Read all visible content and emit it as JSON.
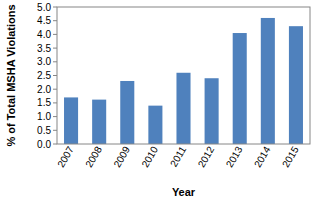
{
  "chart_data": {
    "type": "bar",
    "categories": [
      "2007",
      "2008",
      "2009",
      "2010",
      "2011",
      "2012",
      "2013",
      "2014",
      "2015"
    ],
    "values": [
      1.7,
      1.62,
      2.3,
      1.4,
      2.6,
      2.4,
      4.05,
      4.6,
      4.3
    ],
    "color": "#4f81bd",
    "x_label": "Year",
    "y_label": "% of Total MSHA Violations",
    "ylim": [
      0,
      5
    ],
    "yticks": [
      {
        "value": 0,
        "label": "0.0"
      },
      0.5,
      {
        "value": 1,
        "label": "1.0"
      },
      1.5,
      {
        "value": 2,
        "label": "2.0"
      },
      2.5,
      {
        "value": 3,
        "label": "3.0"
      },
      3.5,
      {
        "value": 4,
        "label": "4.0"
      },
      4.5,
      {
        "value": 5,
        "label": "5.0"
      }
    ],
    "grid": false
  }
}
